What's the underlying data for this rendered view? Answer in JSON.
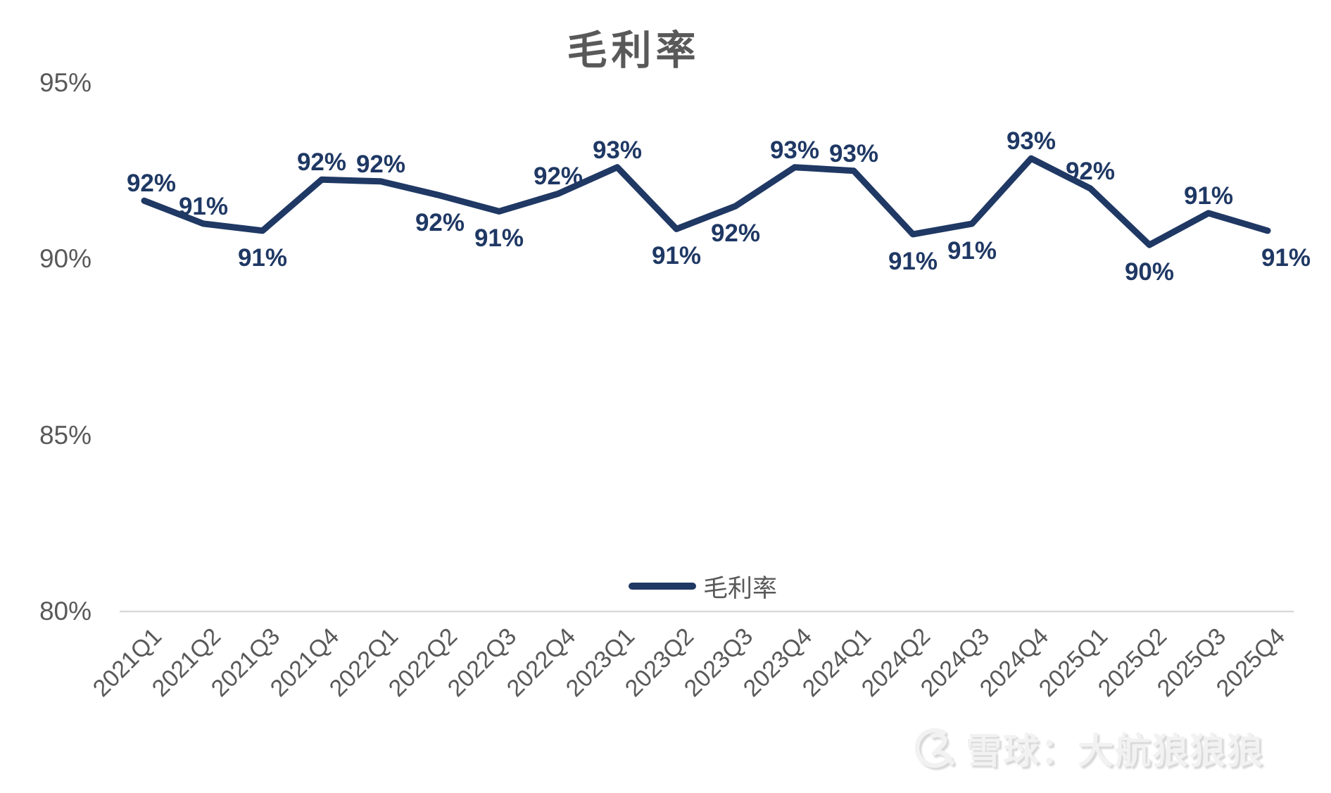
{
  "chart": {
    "title": "毛利率",
    "legend": {
      "series_label": "毛利率"
    },
    "watermark": {
      "text": "雪球：大航狼狼狼",
      "logo": "xueqiu-logo"
    }
  },
  "chart_data": {
    "type": "line",
    "title": "毛利率",
    "series_name": "毛利率",
    "categories": [
      "2021Q1",
      "2021Q2",
      "2021Q3",
      "2021Q4",
      "2022Q1",
      "2022Q2",
      "2022Q3",
      "2022Q4",
      "2023Q1",
      "2023Q2",
      "2023Q3",
      "2023Q4",
      "2024Q1",
      "2024Q2",
      "2024Q3",
      "2024Q4",
      "2025Q1",
      "2025Q2",
      "2025Q3",
      "2025Q4"
    ],
    "values": [
      91.65,
      91.0,
      90.8,
      92.25,
      92.2,
      91.8,
      91.35,
      91.85,
      92.6,
      90.85,
      91.5,
      92.6,
      92.5,
      90.7,
      91.0,
      92.85,
      92.0,
      90.4,
      91.3,
      90.8
    ],
    "data_labels": [
      "92%",
      "91%",
      "91%",
      "92%",
      "92%",
      "92%",
      "91%",
      "92%",
      "93%",
      "91%",
      "92%",
      "93%",
      "93%",
      "91%",
      "91%",
      "93%",
      "92%",
      "90%",
      "91%",
      "91%"
    ],
    "label_positions": [
      "above",
      "above",
      "below",
      "above",
      "above",
      "below",
      "below",
      "above",
      "above",
      "below",
      "below",
      "above",
      "above",
      "below",
      "below",
      "above",
      "above",
      "below",
      "above",
      "below"
    ],
    "ylim": [
      80,
      95
    ],
    "y_ticks": [
      95,
      90,
      85,
      80
    ],
    "y_tick_labels": [
      "95%",
      "90%",
      "85%",
      "80%"
    ],
    "x_axis_rotation_deg": -45,
    "grid": false,
    "legend_position": "bottom-center",
    "colors": {
      "line": "#1f3864",
      "data_label_text": "#1f3864",
      "axis_text": "#595959",
      "title_text": "#595959",
      "axis_line": "#d9d9d9",
      "background": "#ffffff",
      "watermark_text": "#f2f2f2"
    }
  }
}
